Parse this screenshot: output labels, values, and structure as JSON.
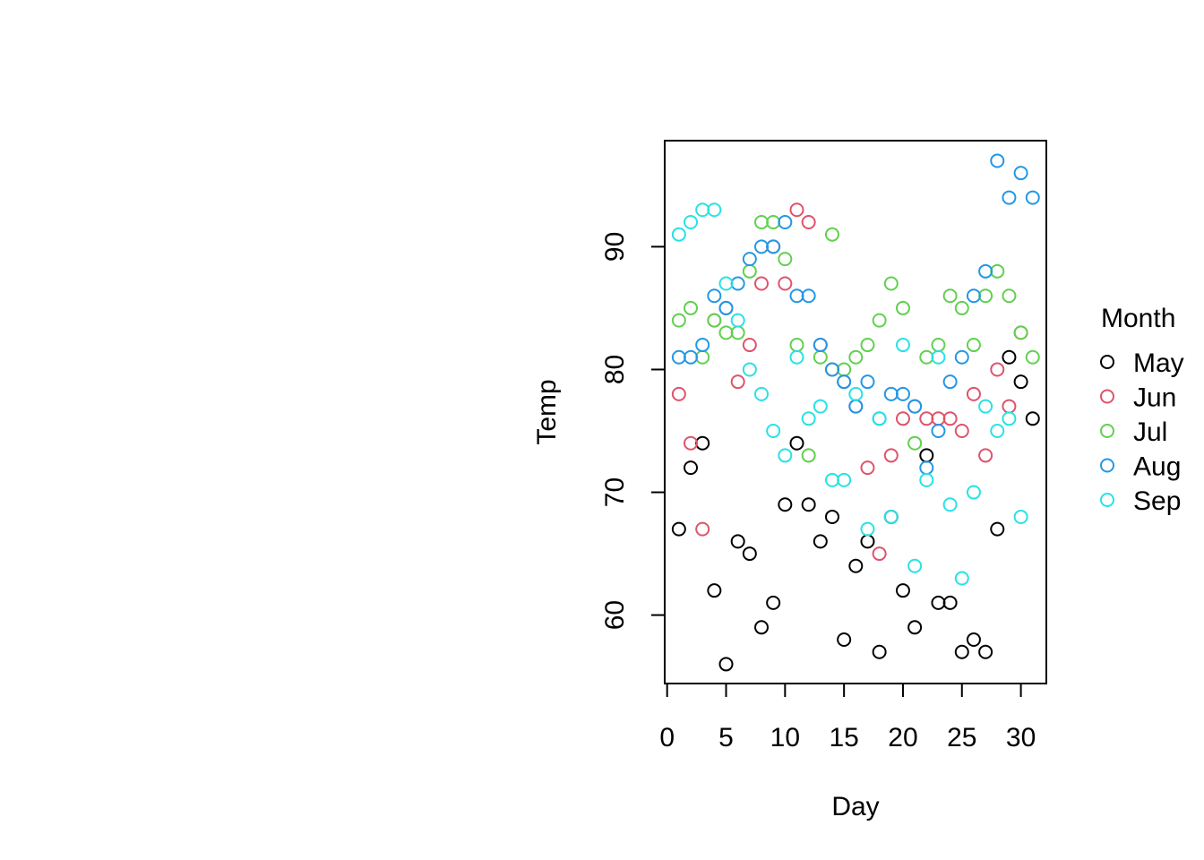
{
  "chart_data": {
    "type": "scatter",
    "title": "",
    "xlabel": "Day",
    "ylabel": "Temp",
    "xlim": [
      0,
      31
    ],
    "ylim": [
      56,
      97
    ],
    "xticks": [
      0,
      5,
      10,
      15,
      20,
      25,
      30
    ],
    "yticks": [
      60,
      70,
      80,
      90
    ],
    "grid": false,
    "legend": {
      "title": "Month",
      "placement": "right"
    },
    "series": [
      {
        "name": "May",
        "color": "#000000",
        "x": [
          1,
          2,
          3,
          4,
          5,
          6,
          7,
          8,
          9,
          10,
          11,
          12,
          13,
          14,
          15,
          16,
          17,
          18,
          19,
          20,
          21,
          22,
          23,
          24,
          25,
          26,
          27,
          28,
          29,
          30,
          31
        ],
        "y": [
          67,
          72,
          74,
          62,
          56,
          66,
          65,
          59,
          61,
          69,
          74,
          69,
          66,
          68,
          58,
          64,
          66,
          57,
          68,
          62,
          59,
          73,
          61,
          61,
          57,
          58,
          57,
          67,
          81,
          79,
          76
        ]
      },
      {
        "name": "Jun",
        "color": "#DF536B",
        "x": [
          1,
          2,
          3,
          4,
          5,
          6,
          7,
          8,
          9,
          10,
          11,
          12,
          13,
          14,
          15,
          16,
          17,
          18,
          19,
          20,
          21,
          22,
          23,
          24,
          25,
          26,
          27,
          28,
          29,
          30
        ],
        "y": [
          78,
          74,
          67,
          84,
          85,
          79,
          82,
          87,
          90,
          87,
          93,
          92,
          82,
          80,
          79,
          77,
          72,
          65,
          73,
          76,
          77,
          76,
          76,
          76,
          75,
          78,
          73,
          80,
          77,
          83
        ]
      },
      {
        "name": "Jul",
        "color": "#61D04F",
        "x": [
          1,
          2,
          3,
          4,
          5,
          6,
          7,
          8,
          9,
          10,
          11,
          12,
          13,
          14,
          15,
          16,
          17,
          18,
          19,
          20,
          21,
          22,
          23,
          24,
          25,
          26,
          27,
          28,
          29,
          30,
          31
        ],
        "y": [
          84,
          85,
          81,
          84,
          83,
          83,
          88,
          92,
          92,
          89,
          82,
          73,
          81,
          91,
          80,
          81,
          82,
          84,
          87,
          85,
          74,
          81,
          82,
          86,
          85,
          82,
          86,
          88,
          86,
          83,
          81
        ]
      },
      {
        "name": "Aug",
        "color": "#2297E6",
        "x": [
          1,
          2,
          3,
          4,
          5,
          6,
          7,
          8,
          9,
          10,
          11,
          12,
          13,
          14,
          15,
          16,
          17,
          18,
          19,
          20,
          21,
          22,
          23,
          24,
          25,
          26,
          27,
          28,
          29,
          30,
          31
        ],
        "y": [
          81,
          81,
          82,
          86,
          85,
          87,
          89,
          90,
          90,
          92,
          86,
          86,
          82,
          80,
          79,
          77,
          79,
          76,
          78,
          78,
          77,
          72,
          75,
          79,
          81,
          86,
          88,
          97,
          94,
          96,
          94
        ]
      },
      {
        "name": "Sep",
        "color": "#28E2E5",
        "x": [
          1,
          2,
          3,
          4,
          5,
          6,
          7,
          8,
          9,
          10,
          11,
          12,
          13,
          14,
          15,
          16,
          17,
          18,
          19,
          20,
          21,
          22,
          23,
          24,
          25,
          26,
          27,
          28,
          29,
          30
        ],
        "y": [
          91,
          92,
          93,
          93,
          87,
          84,
          80,
          78,
          75,
          73,
          81,
          76,
          77,
          71,
          71,
          78,
          67,
          76,
          68,
          82,
          64,
          71,
          81,
          69,
          63,
          70,
          77,
          75,
          76,
          68
        ]
      }
    ]
  }
}
